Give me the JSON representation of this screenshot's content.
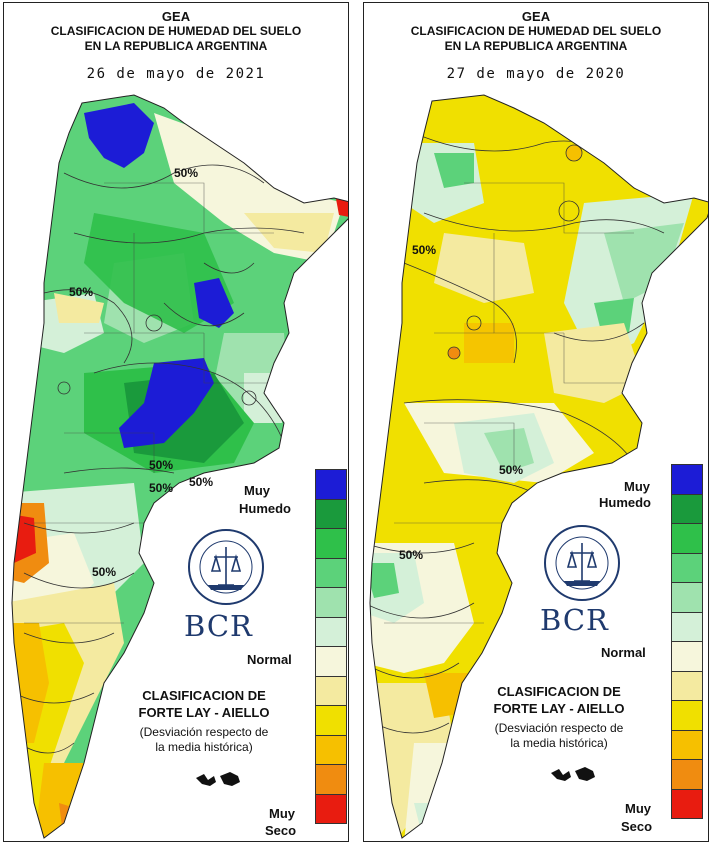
{
  "maps": [
    {
      "header": {
        "org": "GEA",
        "title_line1": "CLASIFICACION DE HUMEDAD DEL SUELO",
        "title_line2": "EN LA REPUBLICA ARGENTINA",
        "date": "26 de mayo de 2021"
      },
      "contour_labels": [
        "50%",
        "50%",
        "50%",
        "50%",
        "50%",
        "50%"
      ]
    },
    {
      "header": {
        "org": "GEA",
        "title_line1": "CLASIFICACION DE HUMEDAD DEL SUELO",
        "title_line2": "EN LA REPUBLICA ARGENTINA",
        "date": "27 de mayo de 2020"
      },
      "contour_labels": [
        "50%",
        "50%",
        "50%"
      ]
    }
  ],
  "legend": {
    "top_label_1": "Muy",
    "top_label_2": "Humedo",
    "middle_label": "Normal",
    "bottom_label_1": "Muy",
    "bottom_label_2": "Seco",
    "classes": [
      "#1c1cd6",
      "#1a9a3c",
      "#2fc04a",
      "#5cd27a",
      "#9fe2ae",
      "#d4f0d8",
      "#f6f6dc",
      "#f4eaa0",
      "#f0e000",
      "#f6c000",
      "#f08c10",
      "#e81c10"
    ]
  },
  "logo": {
    "text": "BCR",
    "seal_text": "BOLSA DE COMERCIO DE ROSARIO"
  },
  "method": {
    "line1": "CLASIFICACION DE",
    "line2": "FORTE LAY - AIELLO",
    "note1": "(Desviación respecto de",
    "note2": "la media histórica)"
  }
}
